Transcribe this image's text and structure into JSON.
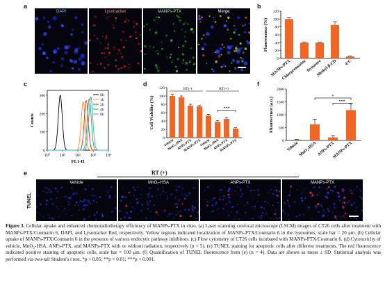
{
  "panels": {
    "a": {
      "letter": "a",
      "titles": [
        "DAPI",
        "Lysotracker",
        "MANPs-PTX",
        "Merge"
      ]
    },
    "b": {
      "letter": "b"
    },
    "c": {
      "letter": "c"
    },
    "d": {
      "letter": "d"
    },
    "e": {
      "letter": "e",
      "side_label": "TUNEL",
      "header": "RT (+)",
      "titles": [
        "Vehicle",
        "MnO₂-HSA",
        "ANPs-PTX",
        "MANPs-PTX"
      ]
    },
    "f": {
      "letter": "f"
    }
  },
  "chart_data": [
    {
      "id": "b",
      "type": "bar",
      "categories": [
        "MANPs-PTX",
        "Chlorpromazine",
        "Dynasore",
        "Methyl-β-CD",
        "4°C"
      ],
      "values": [
        100,
        40,
        40,
        85,
        5
      ],
      "errors": [
        3,
        1,
        1,
        8,
        1
      ],
      "xlabel": "",
      "ylabel": "Fluorescence (%)",
      "ylim": [
        0,
        120
      ],
      "yticks": [
        "0",
        "20",
        "40",
        "60",
        "80",
        "100",
        "120"
      ],
      "color": "#f26522"
    },
    {
      "id": "c",
      "type": "line",
      "xlabel": "FL1-H",
      "ylabel": "Counts",
      "xticks": [
        "10⁰",
        "10¹",
        "10²",
        "10³",
        "10⁴"
      ],
      "yticks": [
        "0",
        "100",
        "200",
        "300"
      ],
      "ylim": [
        0,
        300
      ],
      "x_log_range": [
        0,
        4
      ],
      "series": [
        {
          "name": "0h",
          "color": "#000000",
          "peak_log": 0.85,
          "height": 300,
          "width": 0.13
        },
        {
          "name": "1h",
          "color": "#f7941d",
          "peak_log": 2.35,
          "height": 265,
          "width": 0.13
        },
        {
          "name": "2h",
          "color": "#ed1c24",
          "peak_log": 2.55,
          "height": 272,
          "width": 0.13
        },
        {
          "name": "4h",
          "color": "#3aaa35",
          "peak_log": 2.75,
          "height": 282,
          "width": 0.13
        },
        {
          "name": "8h",
          "color": "#29abe2",
          "peak_log": 2.85,
          "height": 292,
          "width": 0.13
        }
      ],
      "legend": "top-right"
    },
    {
      "id": "d",
      "type": "bar",
      "groups": [
        "RT(-)",
        "RT(+)"
      ],
      "categories": [
        "Vehicle",
        "MnO₂-HSA",
        "ANPs-PTX",
        "MANPs-PTX",
        "Vehicle",
        "MnO₂-HSA",
        "ANPs-PTX",
        "MANPs-PTX"
      ],
      "values": [
        100,
        97,
        77,
        75,
        53,
        38,
        45,
        22
      ],
      "errors": [
        4,
        3,
        3,
        2,
        3,
        3,
        4,
        2
      ],
      "ylabel": "Cell Viability (%)",
      "ylim": [
        0,
        120
      ],
      "yticks": [
        "0",
        "20",
        "40",
        "60",
        "80",
        "100",
        "120"
      ],
      "significance": "***",
      "color": "#f26522"
    },
    {
      "id": "f",
      "type": "bar",
      "categories": [
        "Vehicle",
        "MnO₂-HSA",
        "ANPs-PTX",
        "MANPs-PTX"
      ],
      "values": [
        30,
        630,
        120,
        1180
      ],
      "errors": [
        10,
        200,
        70,
        260
      ],
      "ylabel": "Fluorescence (a.u.)",
      "ylim": [
        0,
        2000
      ],
      "yticks": [
        "0",
        "500",
        "1000",
        "1500",
        "2000"
      ],
      "significance": [
        "*",
        "***"
      ],
      "color": "#f26522"
    }
  ],
  "caption": {
    "label": "Figure 3.",
    "text": " Cellular uptake and enhanced chemoradiotherapy efficiency of MANPs-PTX in vitro. (a) Laser scanning confocal microscope (LSCM) images of CT26 cells after treatment with MANPs-PTX/Coumarin 6, DAPI, and Lysotracker Red, respectively. Yellow regions indicated localization of MANPs-PTX/Coumarin 6 in the lysosomes, scale bar = 20 μm. (b) Cellular uptake of MANPs-PTX/Coumarin 6 in the presence of various endocytic pathway inhibitors. (c) Flow cytometry of CT26 cells incubated with MANPs-PTX/Coumarin 6. (d) Cytotoxicity of vehicle, MnO₂-HSA, ANPs-PTX, and MANPs-PTX with or without radiation, respectively (n = 5). (e) TUNEL staining for apoptotic cells after different treatments. The red fluorescence indicated positive staining of apoptotic cells, scale bar = 100 μm. (f) Quantification of TUNEL fluorescence from (e) (n = 4). Data are shown as mean ± SD. Statistical analysis was performed via two-tail Student's t test. *p < 0.05; **p < 0.01; ***p < 0.001."
  }
}
